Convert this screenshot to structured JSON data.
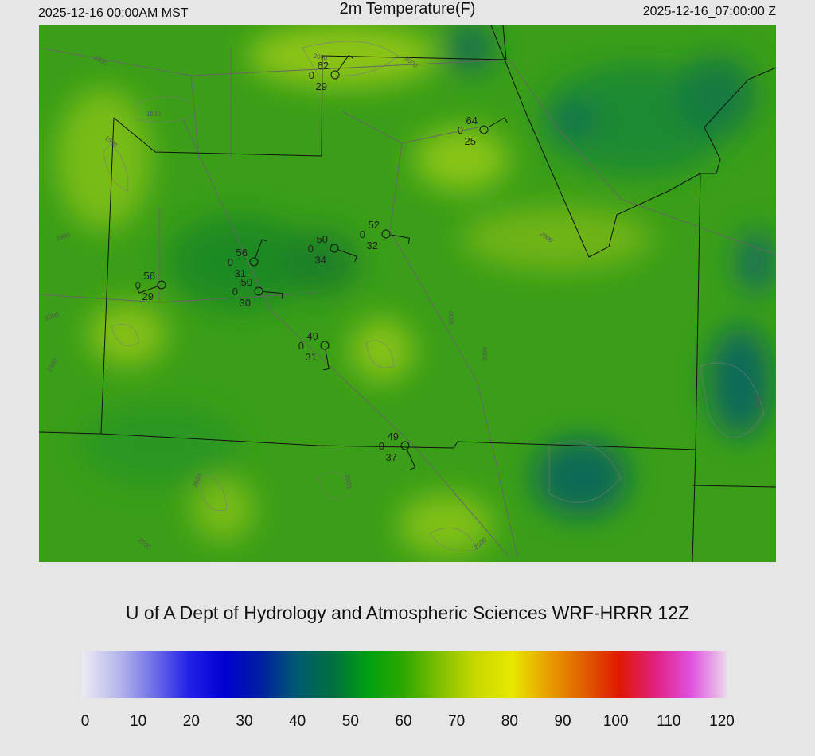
{
  "header": {
    "left": "2025-12-16 00:00AM MST",
    "title": "2m Temperature(F)",
    "right": "2025-12-16_07:00:00 Z"
  },
  "stations": [
    {
      "temp": 62,
      "precip": 0,
      "dewpoint": 29
    },
    {
      "temp": 64,
      "precip": 0,
      "dewpoint": 25
    },
    {
      "temp": 52,
      "precip": 0,
      "dewpoint": 32
    },
    {
      "temp": 50,
      "precip": 0,
      "dewpoint": 34
    },
    {
      "temp": 56,
      "precip": 0,
      "dewpoint": 31
    },
    {
      "temp": 56,
      "precip": 0,
      "dewpoint": 29
    },
    {
      "temp": 50,
      "precip": 0,
      "dewpoint": 30
    },
    {
      "temp": 49,
      "precip": 0,
      "dewpoint": 31
    },
    {
      "temp": 49,
      "precip": 0,
      "dewpoint": 37
    }
  ],
  "contour_labels": [
    "1500",
    "1500",
    "1500",
    "1500",
    "2000",
    "2000",
    "2000",
    "2500",
    "2500",
    "2500",
    "3000",
    "3000",
    "2500",
    "2000",
    "2000",
    "2500"
  ],
  "footer": "U of A Dept of Hydrology and Atmospheric Sciences WRF-HRRR 12Z",
  "colorbar": {
    "lim": [
      0,
      120
    ],
    "ticks": [
      0,
      10,
      20,
      30,
      40,
      50,
      60,
      70,
      80,
      90,
      100,
      110,
      120
    ],
    "colors": [
      "#ecebf5",
      "#b8b8ec",
      "#7070e8",
      "#2020e8",
      "#0000d0",
      "#0020a0",
      "#005a70",
      "#007040",
      "#00a010",
      "#30a800",
      "#80c000",
      "#c8d800",
      "#e8e800",
      "#e8a000",
      "#e06000",
      "#e01800",
      "#e02080",
      "#e050e0",
      "#ecd8ec"
    ]
  }
}
